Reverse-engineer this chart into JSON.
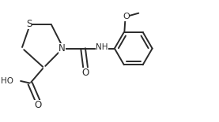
{
  "bg_color": "#ffffff",
  "line_color": "#2a2a2a",
  "line_width": 1.4,
  "font_size": 7.5,
  "figsize": [
    2.77,
    1.55
  ],
  "dpi": 100,
  "xlim": [
    0,
    8.5
  ],
  "ylim": [
    0,
    4.8
  ]
}
